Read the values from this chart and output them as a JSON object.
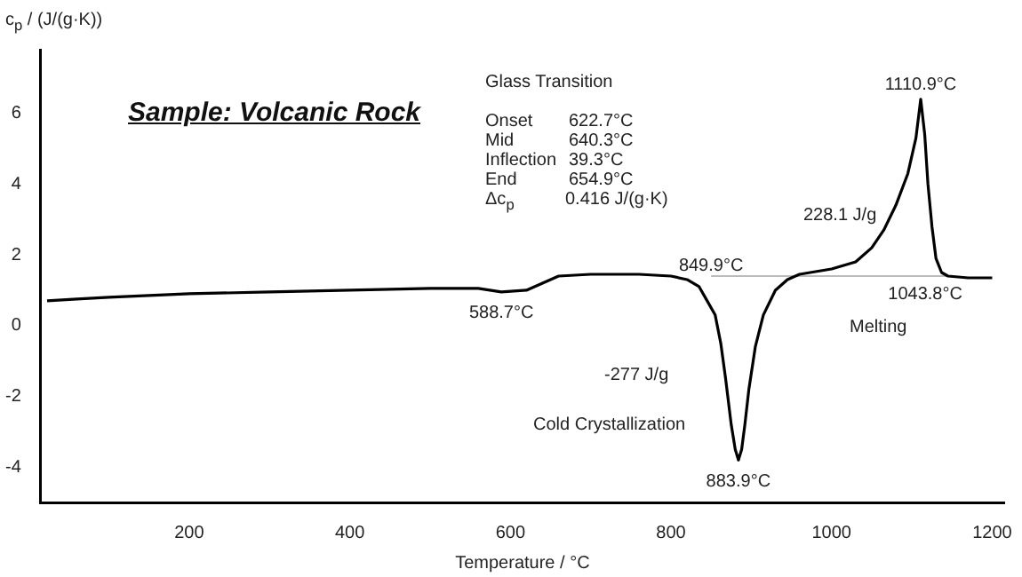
{
  "chart_data": {
    "type": "line",
    "title": "Sample: Volcanic Rock",
    "xlabel": "Temperature / °C",
    "ylabel": "c$_{p}$ / (J/(g·K))",
    "xlim": [
      15,
      1215
    ],
    "xticks": [
      200,
      400,
      600,
      800,
      1000,
      1200
    ],
    "ylim": [
      -5,
      7.8
    ],
    "yticks": [
      -4,
      -2,
      0,
      2,
      4,
      6
    ],
    "grid": false,
    "legend": false,
    "marker": "none",
    "line_style": "solid",
    "series": [
      {
        "color": "#000000",
        "x": [
          23,
          60,
          100,
          200,
          300,
          400,
          500,
          560,
          588.7,
          620,
          640,
          660,
          700,
          760,
          800,
          820,
          835,
          845,
          855,
          862,
          868,
          875,
          880,
          884,
          888,
          892,
          897,
          905,
          915,
          930,
          945,
          960,
          1000,
          1030,
          1050,
          1065,
          1080,
          1095,
          1105,
          1111,
          1116,
          1120,
          1125,
          1130,
          1137,
          1145,
          1170,
          1200
        ],
        "values": [
          0.7,
          0.75,
          0.8,
          0.9,
          0.95,
          1.0,
          1.05,
          1.05,
          0.95,
          1.0,
          1.2,
          1.4,
          1.45,
          1.45,
          1.4,
          1.3,
          1.1,
          0.7,
          0.3,
          -0.5,
          -1.5,
          -2.8,
          -3.5,
          -3.8,
          -3.5,
          -2.8,
          -1.8,
          -0.6,
          0.3,
          1.0,
          1.3,
          1.45,
          1.6,
          1.8,
          2.2,
          2.7,
          3.4,
          4.3,
          5.3,
          6.4,
          5.4,
          4.0,
          2.8,
          1.9,
          1.5,
          1.4,
          1.35,
          1.35
        ]
      },
      {
        "color": "#bbbbbb",
        "x": [
          849.9,
          1150
        ],
        "values": [
          1.4,
          1.4
        ]
      }
    ],
    "annotations": [
      "Glass Transition",
      "Onset",
      "622.7°C",
      "Mid",
      "640.3°C",
      "Inflection",
      "39.3°C",
      "End",
      "654.9°C",
      "Δc$_{p}$",
      "0.416 J/(g·K)",
      "228.1 J/g",
      "-277 J/g",
      "Cold Crystallization",
      "Melting",
      {
        "text": "1110.9°C",
        "x": 1110.9,
        "y": 6.4
      },
      {
        "text": "588.7°C",
        "x": 588.7,
        "y": 0.95
      },
      {
        "text": "849.9°C",
        "x": 849.9,
        "y": 1.4
      },
      {
        "text": "883.9°C",
        "x": 883.9,
        "y": -3.8
      },
      {
        "text": "1043.8°C",
        "x": 1043.8,
        "y": 1.4
      }
    ]
  }
}
